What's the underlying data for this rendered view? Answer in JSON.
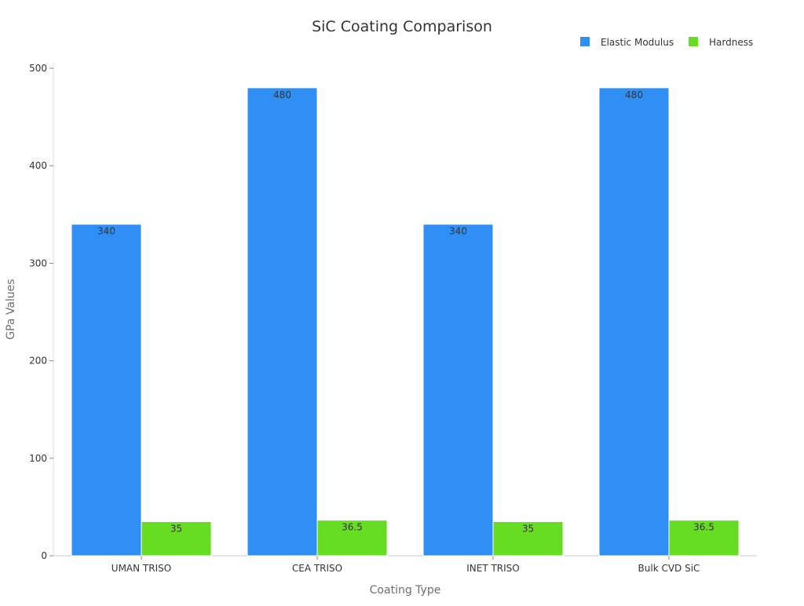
{
  "chart_data": {
    "type": "bar",
    "title": "SiC Coating Comparison",
    "xlabel": "Coating Type",
    "ylabel": "GPa Values",
    "categories": [
      "UMAN TRISO",
      "CEA TRISO",
      "INET TRISO",
      "Bulk CVD SiC"
    ],
    "series": [
      {
        "name": "Elastic Modulus",
        "color": "#2f8ff5",
        "values": [
          340,
          480,
          340,
          480
        ],
        "labels": [
          "340",
          "480",
          "340",
          "480"
        ]
      },
      {
        "name": "Hardness",
        "color": "#66dd22",
        "values": [
          35,
          36.5,
          35,
          36.5
        ],
        "labels": [
          "35",
          "36.5",
          "35",
          "36.5"
        ]
      }
    ],
    "ylim": [
      0,
      500
    ],
    "yticks": [
      0,
      100,
      200,
      300,
      400,
      500
    ],
    "ytick_labels": [
      "0",
      "100",
      "200",
      "300",
      "400",
      "500"
    ],
    "grid": false,
    "legend_position": "top-right"
  }
}
